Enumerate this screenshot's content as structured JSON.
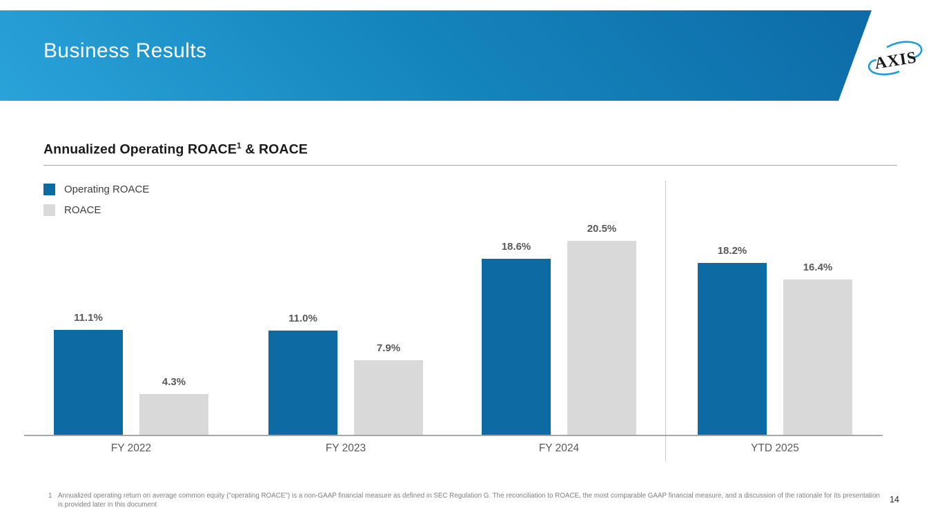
{
  "slide": {
    "header": {
      "title": "Business Results"
    },
    "logo": {
      "text": "AXIS"
    },
    "section": {
      "title_main": "Annualized Operating ROACE",
      "title_sup": "1",
      "title_rest": " & ROACE"
    },
    "legend": [
      {
        "label": "Operating ROACE",
        "color": "#0e6aa2"
      },
      {
        "label": "ROACE",
        "color": "#d9d9d9"
      }
    ],
    "footnote": {
      "marker": "1",
      "text": "Annualized operating return on average common equity (\"operating ROACE\") is a non-GAAP financial measure as defined in SEC Regulation G. The reconciliation to ROACE, the most comparable GAAP financial measure, and a discussion of the rationale for its presentation is provided later in this document"
    },
    "page_number": "14"
  },
  "chart_data": {
    "type": "bar",
    "title": "Annualized Operating ROACE¹ & ROACE",
    "categories": [
      "FY 2022",
      "FY 2023",
      "FY 2024",
      "YTD 2025"
    ],
    "series": [
      {
        "name": "Operating ROACE",
        "color": "#0e6aa2",
        "values": [
          11.1,
          11.0,
          18.6,
          18.2
        ]
      },
      {
        "name": "ROACE",
        "color": "#d9d9d9",
        "values": [
          4.3,
          7.9,
          20.5,
          16.4
        ]
      }
    ],
    "value_label_format": "{value}%",
    "xlabel": "",
    "ylabel": "",
    "ylim": [
      0,
      22
    ],
    "grid": false,
    "legend_position": "top-left",
    "separator_before_category": "YTD 2025",
    "colors": {
      "accent_blue": "#0e6aa2",
      "bar_gray": "#d9d9d9",
      "label_gray": "#595959",
      "banner_gradient_start": "#2aa3da",
      "banner_gradient_end": "#0c67a4",
      "swoosh_blue": "#1f9bd6"
    }
  }
}
